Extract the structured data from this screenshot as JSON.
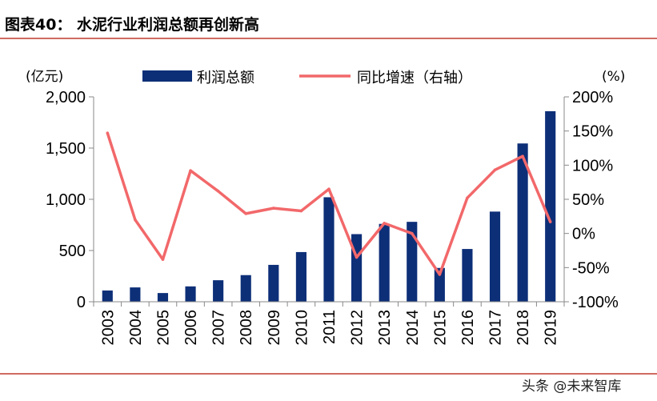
{
  "header": {
    "title": "图表40：  水泥行业利润总额再创新高"
  },
  "chart_data": {
    "type": "bar",
    "categories": [
      "2003",
      "2004",
      "2005",
      "2006",
      "2007",
      "2008",
      "2009",
      "2010",
      "2011",
      "2012",
      "2013",
      "2014",
      "2015",
      "2016",
      "2017",
      "2018",
      "2019"
    ],
    "series": [
      {
        "name": "利润总额",
        "type": "bar",
        "axis": "left",
        "color": "#0d2f78",
        "values": [
          110,
          140,
          85,
          150,
          210,
          260,
          360,
          485,
          1020,
          660,
          760,
          780,
          330,
          515,
          880,
          1545,
          1860
        ]
      },
      {
        "name": "同比增速（右轴）",
        "type": "line",
        "axis": "right",
        "color": "#f2686a",
        "values": [
          147,
          20,
          -38,
          92,
          62,
          29,
          37,
          33,
          65,
          -35,
          15,
          0,
          -60,
          52,
          93,
          113,
          17
        ]
      }
    ],
    "left_axis": {
      "unit": "(亿元)",
      "ylim": [
        0,
        2000
      ],
      "ticks": [
        "0",
        "500",
        "1,000",
        "1,500",
        "2,000"
      ],
      "tick_values": [
        0,
        500,
        1000,
        1500,
        2000
      ]
    },
    "right_axis": {
      "unit": "(%)",
      "ylim": [
        -100,
        200
      ],
      "ticks": [
        "-100%",
        "-50%",
        "0%",
        "50%",
        "100%",
        "150%",
        "200%"
      ],
      "tick_values": [
        -100,
        -50,
        0,
        50,
        100,
        150,
        200
      ]
    },
    "legend_position": "top",
    "grid": false
  },
  "watermark": "头条 @未来智库",
  "colors": {
    "bar": "#0d2f78",
    "line": "#f2686a",
    "divider": "#c0392b"
  }
}
